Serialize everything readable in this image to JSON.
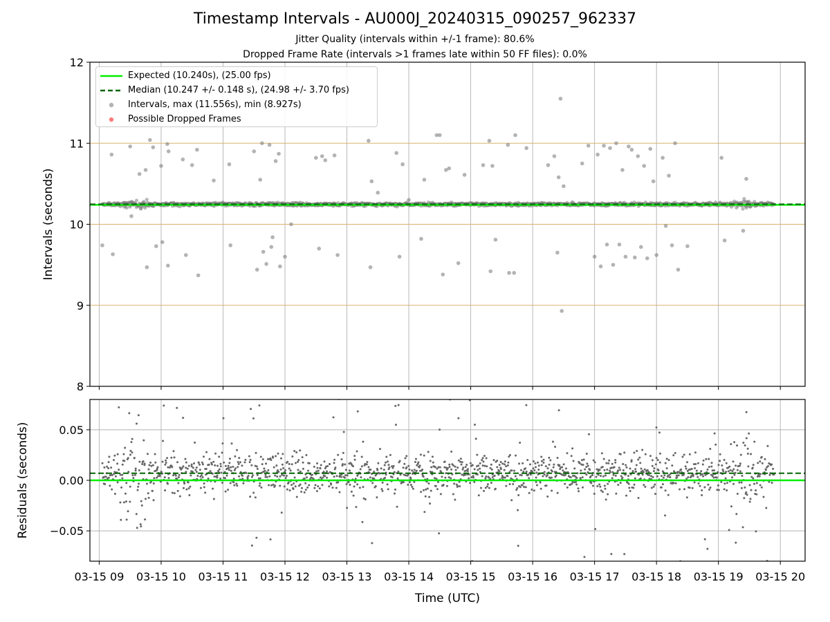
{
  "figure": {
    "title": "Timestamp Intervals - AU000J_20240315_090257_962337",
    "subtitle1": "Jitter Quality (intervals within +/-1 frame): 80.6%",
    "subtitle2": "Dropped Frame Rate (intervals >1 frames late within 50 FF files): 0.0%"
  },
  "legend": {
    "expected": "Expected (10.240s), (25.00 fps)",
    "median": "Median (10.247 +/- 0.148 s), (24.98 +/- 3.70 fps)",
    "intervals": "Intervals, max (11.556s), min (8.927s)",
    "dropped": "Possible Dropped Frames"
  },
  "colors": {
    "expected": "#00ee00",
    "median": "#006400",
    "points": "#808080",
    "dropped": "#ff4444",
    "tolerance_band": "#d9b36b",
    "grid": "#b0b0b0"
  },
  "chart_data": [
    {
      "type": "scatter",
      "title": "",
      "xlabel": "",
      "ylabel": "Intervals (seconds)",
      "xlim_hours_utc": [
        8.85,
        20.4
      ],
      "ylim": [
        8,
        12
      ],
      "yticks": [
        "8",
        "9",
        "10",
        "11",
        "12"
      ],
      "expected": 10.24,
      "median": 10.247,
      "horizontal_reference_lines": [
        9,
        10,
        11
      ],
      "grid": "x only",
      "legend_position": "top-left",
      "series": [
        {
          "name": "Intervals, max (11.556s), min (8.927s)",
          "count_approx": 3800,
          "typical_range": [
            10.18,
            10.3
          ],
          "max": 11.556,
          "min": 8.927
        },
        {
          "name": "Possible Dropped Frames",
          "count": 0,
          "values": []
        }
      ],
      "outliers_hour_value": [
        [
          9.05,
          9.74
        ],
        [
          9.2,
          10.86
        ],
        [
          9.22,
          9.63
        ],
        [
          9.5,
          10.96
        ],
        [
          9.52,
          10.1
        ],
        [
          9.65,
          10.62
        ],
        [
          9.75,
          10.67
        ],
        [
          9.77,
          9.47
        ],
        [
          9.82,
          11.04
        ],
        [
          9.87,
          10.95
        ],
        [
          9.92,
          9.73
        ],
        [
          10.0,
          10.72
        ],
        [
          10.02,
          9.78
        ],
        [
          10.1,
          10.99
        ],
        [
          10.11,
          9.49
        ],
        [
          10.12,
          10.9
        ],
        [
          10.35,
          10.8
        ],
        [
          10.4,
          9.62
        ],
        [
          10.5,
          10.73
        ],
        [
          10.58,
          10.92
        ],
        [
          10.6,
          9.37
        ],
        [
          10.85,
          10.54
        ],
        [
          11.1,
          10.74
        ],
        [
          11.12,
          9.74
        ],
        [
          11.5,
          10.9
        ],
        [
          11.55,
          9.44
        ],
        [
          11.6,
          10.55
        ],
        [
          11.63,
          11.0
        ],
        [
          11.65,
          9.66
        ],
        [
          11.7,
          9.51
        ],
        [
          11.75,
          10.98
        ],
        [
          11.78,
          9.72
        ],
        [
          11.8,
          9.84
        ],
        [
          11.85,
          10.78
        ],
        [
          11.9,
          10.87
        ],
        [
          11.92,
          9.48
        ],
        [
          12.0,
          9.6
        ],
        [
          12.1,
          10.0
        ],
        [
          12.5,
          10.82
        ],
        [
          12.55,
          9.7
        ],
        [
          12.6,
          10.84
        ],
        [
          12.65,
          10.79
        ],
        [
          12.8,
          10.85
        ],
        [
          12.85,
          9.62
        ],
        [
          13.35,
          11.03
        ],
        [
          13.38,
          9.47
        ],
        [
          13.4,
          10.53
        ],
        [
          13.5,
          10.39
        ],
        [
          13.8,
          10.88
        ],
        [
          13.85,
          9.6
        ],
        [
          13.9,
          10.74
        ],
        [
          14.0,
          10.3
        ],
        [
          14.2,
          9.82
        ],
        [
          14.25,
          10.55
        ],
        [
          14.45,
          11.1
        ],
        [
          14.5,
          11.1
        ],
        [
          14.55,
          9.38
        ],
        [
          14.6,
          10.67
        ],
        [
          14.65,
          10.69
        ],
        [
          14.8,
          9.52
        ],
        [
          14.9,
          10.61
        ],
        [
          15.2,
          10.73
        ],
        [
          15.3,
          11.03
        ],
        [
          15.32,
          9.42
        ],
        [
          15.35,
          10.72
        ],
        [
          15.4,
          9.81
        ],
        [
          15.6,
          10.98
        ],
        [
          15.62,
          9.4
        ],
        [
          15.7,
          9.4
        ],
        [
          15.72,
          11.1
        ],
        [
          15.9,
          10.94
        ],
        [
          16.25,
          10.73
        ],
        [
          16.35,
          10.84
        ],
        [
          16.4,
          9.65
        ],
        [
          16.42,
          10.58
        ],
        [
          16.45,
          11.55
        ],
        [
          16.47,
          8.93
        ],
        [
          16.5,
          10.47
        ],
        [
          16.8,
          10.75
        ],
        [
          16.9,
          10.97
        ],
        [
          17.0,
          9.6
        ],
        [
          17.05,
          10.86
        ],
        [
          17.1,
          9.48
        ],
        [
          17.15,
          10.97
        ],
        [
          17.2,
          9.75
        ],
        [
          17.25,
          10.94
        ],
        [
          17.3,
          9.5
        ],
        [
          17.35,
          11.0
        ],
        [
          17.4,
          9.75
        ],
        [
          17.45,
          10.67
        ],
        [
          17.5,
          9.6
        ],
        [
          17.55,
          10.96
        ],
        [
          17.6,
          10.92
        ],
        [
          17.65,
          9.59
        ],
        [
          17.7,
          10.84
        ],
        [
          17.75,
          9.72
        ],
        [
          17.8,
          10.72
        ],
        [
          17.85,
          9.58
        ],
        [
          17.9,
          10.93
        ],
        [
          17.95,
          10.53
        ],
        [
          18.0,
          9.62
        ],
        [
          18.1,
          10.82
        ],
        [
          18.15,
          9.98
        ],
        [
          18.2,
          10.6
        ],
        [
          18.25,
          9.74
        ],
        [
          18.3,
          11.0
        ],
        [
          18.35,
          9.44
        ],
        [
          18.5,
          9.73
        ],
        [
          19.05,
          10.82
        ],
        [
          19.1,
          9.8
        ],
        [
          19.45,
          10.56
        ],
        [
          19.4,
          9.92
        ]
      ]
    },
    {
      "type": "scatter",
      "title": "",
      "xlabel": "Time (UTC)",
      "ylabel": "Residuals (seconds)",
      "xlim_hours_utc": [
        8.85,
        20.4
      ],
      "ylim": [
        -0.08,
        0.08
      ],
      "yticks": [
        "−0.05",
        "0.00",
        "0.05"
      ],
      "xticks": [
        "03-15 09",
        "03-15 10",
        "03-15 11",
        "03-15 12",
        "03-15 13",
        "03-15 14",
        "03-15 15",
        "03-15 16",
        "03-15 17",
        "03-15 18",
        "03-15 19",
        "03-15 20"
      ],
      "expected_residual": 0.0,
      "median_residual": 0.007,
      "grid": "x and y",
      "series": [
        {
          "name": "Residuals",
          "count_approx": 3800,
          "typical_range": [
            -0.03,
            0.04
          ],
          "clipped_beyond": [
            -0.08,
            0.08
          ]
        }
      ]
    }
  ]
}
